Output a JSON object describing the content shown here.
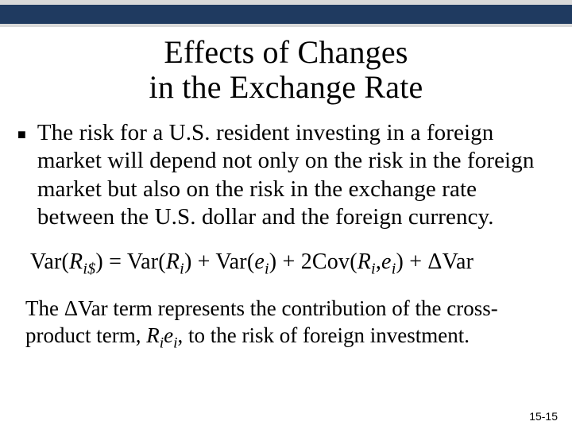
{
  "header": {
    "bar_top_color": "#d9d9d9",
    "bar_mid_color": "#1f3a60",
    "bar_bot_color": "#d9d9d9"
  },
  "title_line1": "Effects of Changes",
  "title_line2": "in the Exchange Rate",
  "bullet": "The risk for a U.S. resident investing in a foreign market will depend not only on the risk in the foreign market but also on the risk in the exchange rate between the U.S. dollar and the foreign currency.",
  "formula": {
    "lhs_var": "Var(",
    "lhs_sym": "R",
    "lhs_sub": "i$",
    "eq": ") = Var(",
    "t1_sym": "R",
    "t1_sub": "i",
    "plus1": ") + Var(",
    "t2_sym": "e",
    "t2_sub": "i",
    "plus2": ") + 2Cov(",
    "t3a_sym": "R",
    "t3a_sub": "i",
    "comma": ",",
    "t3b_sym": "e",
    "t3b_sub": "i",
    "plus3": ") + ",
    "delta": "Δ",
    "dvar": "Var"
  },
  "note_prefix": "The ",
  "note_delta": "Δ",
  "note_var": "Var",
  "note_mid": " term represents the contribution of the cross-product term, ",
  "note_R": "R",
  "note_R_sub": "i",
  "note_e": "e",
  "note_e_sub": "i",
  "note_suffix": ", to the risk of foreign investment.",
  "page_number": "15-15",
  "typography": {
    "title_fontsize": 40,
    "body_fontsize": 29,
    "formula_fontsize": 28,
    "note_fontsize": 27,
    "font_family": "Garamond/Georgia serif"
  }
}
